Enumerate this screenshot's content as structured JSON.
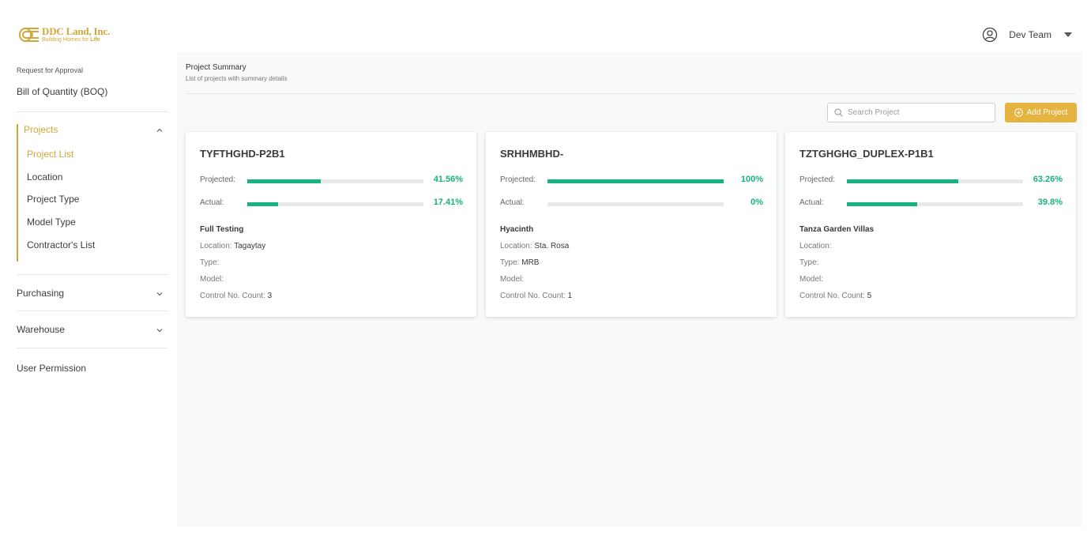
{
  "brand": {
    "name": "DDC Land, Inc.",
    "tagline_prefix": "Building Homes for ",
    "tagline_emphasis": "Life",
    "color": "#d3a63b"
  },
  "header": {
    "user_name": "Dev Team",
    "user_icon": "user-circle-icon",
    "menu_icon": "caret-down-icon"
  },
  "sidebar": {
    "request_label": "Request for Approval",
    "boq_label": "Bill of Quantity (BOQ)",
    "projects_label": "Projects",
    "project_items": [
      "Project List",
      "Location",
      "Project Type",
      "Model Type",
      "Contractor's List"
    ],
    "purchasing_label": "Purchasing",
    "warehouse_label": "Warehouse",
    "user_permission_label": "User Permission"
  },
  "main": {
    "title": "Project Summary",
    "subtitle": "List of projects with summary details",
    "search_placeholder": "Search Project",
    "add_button_label": "Add Project"
  },
  "labels": {
    "projected": "Projected:",
    "actual": "Actual:",
    "location": "Location:",
    "type": "Type:",
    "model": "Model:",
    "control_count": "Control No. Count:"
  },
  "accent_colors": {
    "progress": "#17b282",
    "button": "#e5b33f"
  },
  "projects": [
    {
      "code": "TYFTHGHD-P2B1",
      "projected_pct": "41.56%",
      "projected_value": 41.56,
      "actual_pct": "17.41%",
      "actual_value": 17.41,
      "name": "Full Testing",
      "location": "Tagaytay",
      "type": "",
      "model": "",
      "control_count": "3"
    },
    {
      "code": "SRHHMBHD-",
      "projected_pct": "100%",
      "projected_value": 100,
      "actual_pct": "0%",
      "actual_value": 0,
      "name": "Hyacinth",
      "location": "Sta. Rosa",
      "type": "MRB",
      "model": "",
      "control_count": "1"
    },
    {
      "code": "TZTGHGHG_DUPLEX-P1B1",
      "projected_pct": "63.26%",
      "projected_value": 63.26,
      "actual_pct": "39.8%",
      "actual_value": 39.8,
      "name": "Tanza Garden Villas",
      "location": "",
      "type": "",
      "model": "",
      "control_count": "5"
    }
  ]
}
